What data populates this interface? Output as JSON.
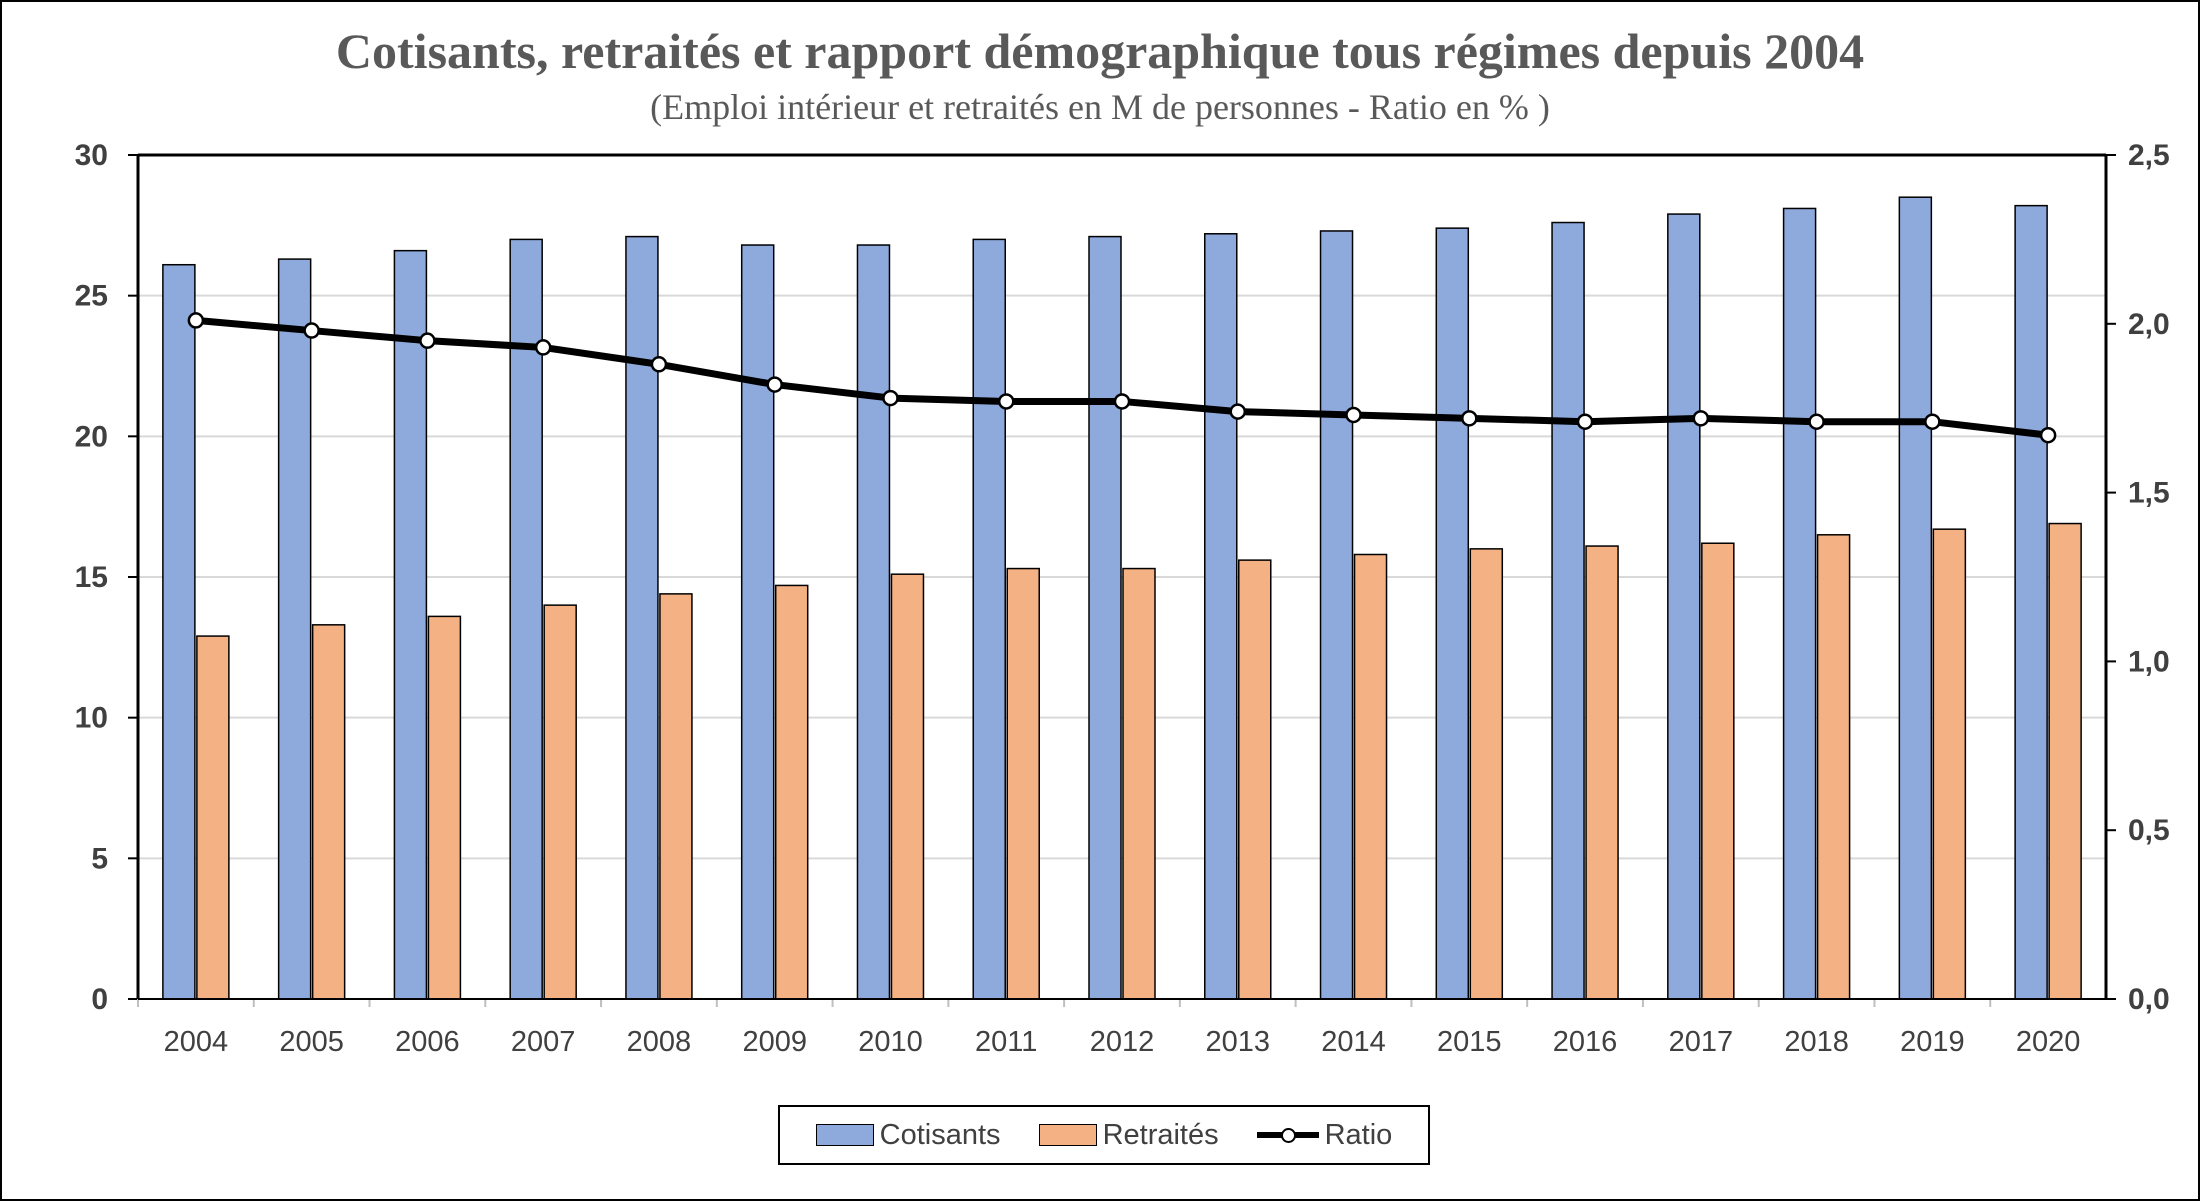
{
  "title": "Cotisants, retraités et rapport démographique tous régimes depuis 2004",
  "subtitle": "(Emploi intérieur et retraités en M de personnes - Ratio en % )",
  "chart_data": {
    "type": "bar",
    "categories": [
      "2004",
      "2005",
      "2006",
      "2007",
      "2008",
      "2009",
      "2010",
      "2011",
      "2012",
      "2013",
      "2014",
      "2015",
      "2016",
      "2017",
      "2018",
      "2019",
      "2020"
    ],
    "series": [
      {
        "name": "Cotisants",
        "type": "bar",
        "axis": "left",
        "color": "#8EA9DB",
        "values": [
          26.1,
          26.3,
          26.6,
          27.0,
          27.1,
          26.8,
          26.8,
          27.0,
          27.1,
          27.2,
          27.3,
          27.4,
          27.6,
          27.9,
          28.1,
          28.5,
          28.2
        ]
      },
      {
        "name": "Retraités",
        "type": "bar",
        "axis": "left",
        "color": "#F4B183",
        "values": [
          12.9,
          13.3,
          13.6,
          14.0,
          14.4,
          14.7,
          15.1,
          15.3,
          15.3,
          15.6,
          15.8,
          16.0,
          16.1,
          16.2,
          16.5,
          16.7,
          16.9
        ]
      },
      {
        "name": "Ratio",
        "type": "line",
        "axis": "right",
        "color": "#000000",
        "values": [
          2.01,
          1.98,
          1.95,
          1.93,
          1.88,
          1.82,
          1.78,
          1.77,
          1.77,
          1.74,
          1.73,
          1.72,
          1.71,
          1.72,
          1.71,
          1.71,
          1.67
        ]
      }
    ],
    "y_left": {
      "min": 0,
      "max": 30,
      "ticks": [
        "0",
        "5",
        "10",
        "15",
        "20",
        "25",
        "30"
      ]
    },
    "y_right": {
      "min": 0,
      "max": 2.5,
      "ticks": [
        "0,0",
        "0,5",
        "1,0",
        "1,5",
        "2,0",
        "2,5"
      ]
    },
    "grid": true,
    "legend_position": "bottom"
  }
}
